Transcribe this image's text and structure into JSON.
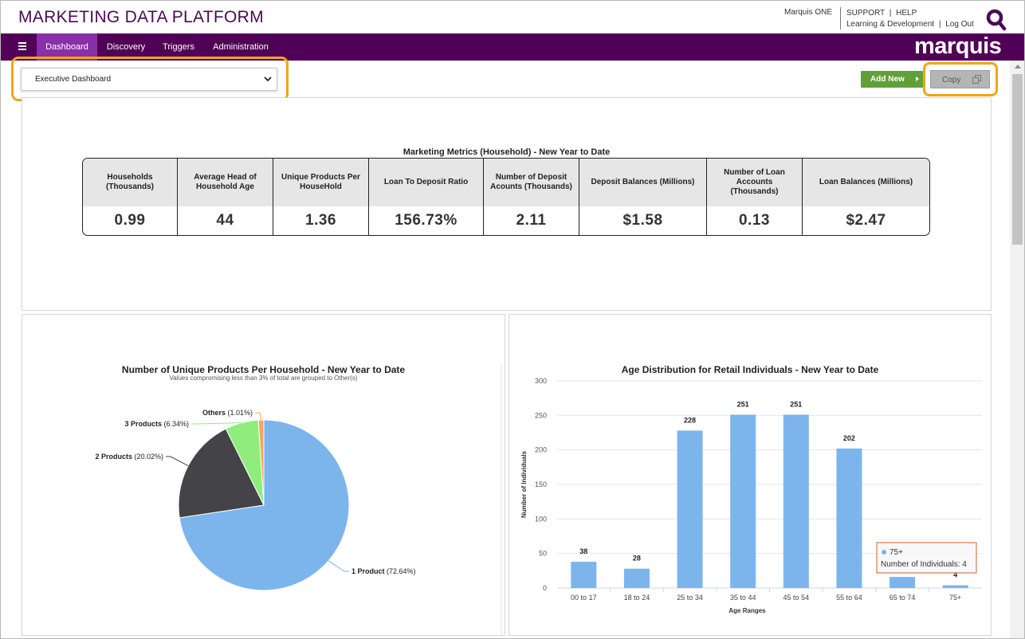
{
  "header": {
    "app_title": "MARKETING DATA PLATFORM",
    "user_name": "Marquis ONE",
    "support": "SUPPORT",
    "help": "HELP",
    "learning": "Learning & Development",
    "logout": "Log Out",
    "link_sep": "|"
  },
  "nav": {
    "items": [
      {
        "label": "Dashboard",
        "active": true
      },
      {
        "label": "Discovery",
        "active": false
      },
      {
        "label": "Triggers",
        "active": false
      },
      {
        "label": "Administration",
        "active": false
      }
    ],
    "brand": "marquis",
    "accent_color": "#500056",
    "active_color": "#8a2fa7"
  },
  "toolbar": {
    "dashboard_select": "Executive Dashboard",
    "add_new_label": "Add New",
    "copy_label": "Copy",
    "highlight_color": "#f2a516"
  },
  "metrics": {
    "title": "Marketing Metrics (Household) - New Year to Date",
    "columns": [
      {
        "header": "Households (Thousands)",
        "value": "0.99"
      },
      {
        "header": "Average Head of Household Age",
        "value": "44"
      },
      {
        "header": "Unique Products Per HouseHold",
        "value": "1.36"
      },
      {
        "header": "Loan To Deposit Ratio",
        "value": "156.73%"
      },
      {
        "header": "Number of Deposit Acounts (Thousands)",
        "value": "2.11"
      },
      {
        "header": "Deposit Balances (Millions)",
        "value": "$1.58"
      },
      {
        "header": "Number of Loan Accounts (Thousands)",
        "value": "0.13"
      },
      {
        "header": "Loan Balances (Millions)",
        "value": "$2.47"
      }
    ]
  },
  "chart_data": [
    {
      "type": "pie",
      "title": "Number of Unique Products Per Household - New Year to Date",
      "subtitle": "Values compromising less than 3% of total are grouped to Other(s)",
      "slices": [
        {
          "label": "1 Product",
          "value": 72.64,
          "value_label": "(72.64%)",
          "color": "#7cb5ec"
        },
        {
          "label": "2 Products",
          "value": 20.02,
          "value_label": "(20.02%)",
          "color": "#434348"
        },
        {
          "label": "3 Products",
          "value": 6.34,
          "value_label": "(6.34%)",
          "color": "#90ed7d"
        },
        {
          "label": "Others",
          "value": 1.01,
          "value_label": "(1.01%)",
          "color": "#f7a35c"
        }
      ]
    },
    {
      "type": "bar",
      "title": "Age Distribution for Retail Individuals - New Year to Date",
      "xlabel": "Age Ranges",
      "ylabel": "Number of Individuals",
      "ylim": [
        0,
        300
      ],
      "yticks": [
        0,
        50,
        100,
        150,
        200,
        250,
        300
      ],
      "categories": [
        "00 to 17",
        "18 to 24",
        "25 to 34",
        "35 to 44",
        "45 to 54",
        "55 to 64",
        "65 to 74",
        "75+"
      ],
      "values": [
        38,
        28,
        228,
        251,
        251,
        202,
        16,
        4
      ],
      "data_labels": [
        "38",
        "28",
        "228",
        "251",
        "251",
        "202",
        "",
        "4"
      ],
      "color": "#7cb5ec",
      "grid": true,
      "tooltip": {
        "category": "75+",
        "series": "Number of Individuals",
        "value": "4"
      }
    }
  ]
}
